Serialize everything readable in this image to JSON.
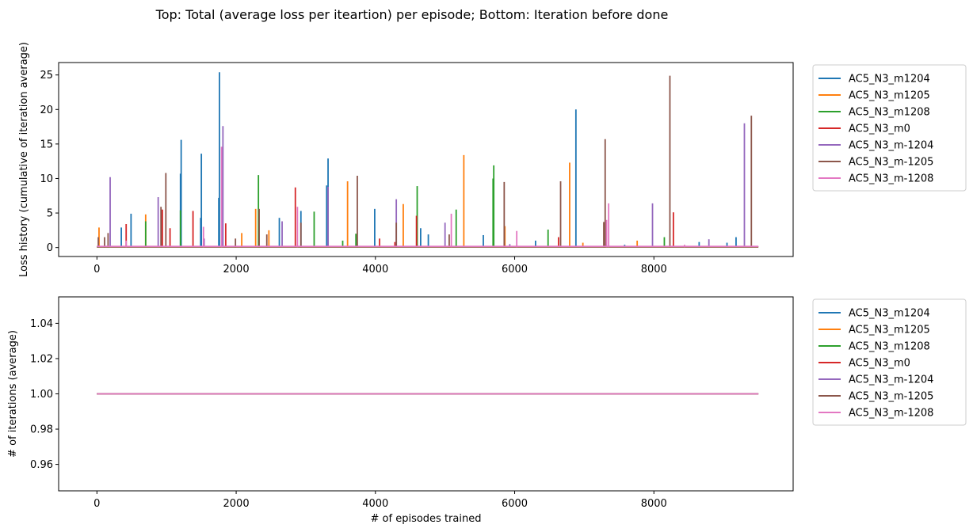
{
  "suptitle": "Top: Total (average loss per iteartion) per episode; Bottom: Iteration before done",
  "colors": {
    "AC5_N3_m1204": "#1f77b4",
    "AC5_N3_m1205": "#ff7f0e",
    "AC5_N3_m1208": "#2ca02c",
    "AC5_N3_m0": "#d62728",
    "AC5_N3_m-1204": "#9467bd",
    "AC5_N3_m-1205": "#8c564b",
    "AC5_N3_m-1208": "#e377c2"
  },
  "chart_data": [
    {
      "type": "line",
      "title": "",
      "xlabel": "",
      "ylabel": "Loss history (cumulative of iteration average)",
      "xlim": [
        -550,
        10000
      ],
      "ylim": [
        -1.3,
        26.8
      ],
      "xticks": [
        0,
        2000,
        4000,
        6000,
        8000
      ],
      "yticks": [
        0,
        5,
        10,
        15,
        20,
        25
      ],
      "baseline": 0.05,
      "x_max": 9500,
      "legend": {
        "placement": "outside-right-top",
        "entries": [
          "AC5_N3_m1204",
          "AC5_N3_m1205",
          "AC5_N3_m1208",
          "AC5_N3_m0",
          "AC5_N3_m-1204",
          "AC5_N3_m-1205",
          "AC5_N3_m-1208"
        ]
      },
      "series": [
        {
          "name": "AC5_N3_m1204",
          "spikes": [
            [
              350,
              2.9
            ],
            [
              490,
              4.9
            ],
            [
              1210,
              15.6
            ],
            [
              1200,
              10.7
            ],
            [
              1500,
              13.6
            ],
            [
              1490,
              4.3
            ],
            [
              1760,
              25.4
            ],
            [
              1750,
              7.2
            ],
            [
              2620,
              4.3
            ],
            [
              2930,
              5.3
            ],
            [
              3320,
              12.9
            ],
            [
              3300,
              9.0
            ],
            [
              3990,
              5.6
            ],
            [
              4650,
              2.8
            ],
            [
              4760,
              1.9
            ],
            [
              5550,
              1.8
            ],
            [
              6300,
              1.0
            ],
            [
              6880,
              20.0
            ],
            [
              8650,
              0.8
            ],
            [
              9180,
              1.5
            ],
            [
              9050,
              0.7
            ],
            [
              7580,
              0.4
            ]
          ]
        },
        {
          "name": "AC5_N3_m1205",
          "spikes": [
            [
              30,
              2.9
            ],
            [
              700,
              4.8
            ],
            [
              2080,
              2.1
            ],
            [
              2280,
              5.6
            ],
            [
              2470,
              2.5
            ],
            [
              3600,
              9.6
            ],
            [
              4400,
              6.3
            ],
            [
              5270,
              13.4
            ],
            [
              5860,
              3.1
            ],
            [
              6790,
              12.3
            ],
            [
              6980,
              0.7
            ],
            [
              7760,
              1.0
            ]
          ]
        },
        {
          "name": "AC5_N3_m1208",
          "spikes": [
            [
              700,
              3.8
            ],
            [
              1200,
              5.4
            ],
            [
              2320,
              10.5
            ],
            [
              3120,
              5.2
            ],
            [
              3720,
              2.0
            ],
            [
              3530,
              1.0
            ],
            [
              4600,
              8.9
            ],
            [
              5160,
              5.5
            ],
            [
              5700,
              11.9
            ],
            [
              5690,
              10.0
            ],
            [
              6480,
              2.6
            ],
            [
              8150,
              1.5
            ]
          ]
        },
        {
          "name": "AC5_N3_m0",
          "spikes": [
            [
              420,
              3.4
            ],
            [
              940,
              5.5
            ],
            [
              1050,
              2.8
            ],
            [
              1380,
              5.3
            ],
            [
              1850,
              3.5
            ],
            [
              2850,
              8.7
            ],
            [
              4060,
              1.3
            ],
            [
              4590,
              4.6
            ],
            [
              6630,
              1.5
            ],
            [
              8280,
              5.1
            ],
            [
              4280,
              0.8
            ]
          ]
        },
        {
          "name": "AC5_N3_m-1204",
          "spikes": [
            [
              190,
              10.2
            ],
            [
              880,
              7.3
            ],
            [
              1810,
              17.6
            ],
            [
              2660,
              3.8
            ],
            [
              3320,
              8.8
            ],
            [
              4300,
              7.0
            ],
            [
              5000,
              3.6
            ],
            [
              5930,
              0.5
            ],
            [
              7980,
              6.4
            ],
            [
              8790,
              1.2
            ],
            [
              9300,
              18.0
            ],
            [
              1540,
              1.3
            ]
          ]
        },
        {
          "name": "AC5_N3_m-1205",
          "spikes": [
            [
              20,
              1.5
            ],
            [
              110,
              1.5
            ],
            [
              160,
              2.1
            ],
            [
              920,
              5.9
            ],
            [
              990,
              10.8
            ],
            [
              2330,
              5.6
            ],
            [
              2440,
              1.9
            ],
            [
              2930,
              3.6
            ],
            [
              3740,
              10.4
            ],
            [
              4300,
              3.6
            ],
            [
              5060,
              1.9
            ],
            [
              5850,
              9.5
            ],
            [
              6660,
              9.6
            ],
            [
              7280,
              3.7
            ],
            [
              7300,
              15.7
            ],
            [
              8230,
              24.9
            ],
            [
              9400,
              19.1
            ],
            [
              1990,
              1.3
            ]
          ]
        },
        {
          "name": "AC5_N3_m-1208",
          "spikes": [
            [
              1530,
              3.0
            ],
            [
              1790,
              14.6
            ],
            [
              2880,
              5.9
            ],
            [
              5090,
              4.9
            ],
            [
              6030,
              2.4
            ],
            [
              7350,
              6.4
            ],
            [
              7320,
              4.0
            ],
            [
              8440,
              0.4
            ],
            [
              420,
              1.0
            ]
          ]
        }
      ]
    },
    {
      "type": "line",
      "title": "",
      "xlabel": "# of episodes trained",
      "ylabel": "# of iterations (average)",
      "xlim": [
        -550,
        10000
      ],
      "ylim": [
        0.945,
        1.055
      ],
      "xticks": [
        0,
        2000,
        4000,
        6000,
        8000
      ],
      "yticks": [
        0.96,
        0.98,
        1.0,
        1.02,
        1.04
      ],
      "ytick_labels": [
        "0.96",
        "0.98",
        "1.00",
        "1.02",
        "1.04"
      ],
      "x_range": [
        0,
        9500
      ],
      "legend": {
        "placement": "outside-right-top",
        "entries": [
          "AC5_N3_m1204",
          "AC5_N3_m1205",
          "AC5_N3_m1208",
          "AC5_N3_m0",
          "AC5_N3_m-1204",
          "AC5_N3_m-1205",
          "AC5_N3_m-1208"
        ]
      },
      "series": [
        {
          "name": "AC5_N3_m1204",
          "value": 1.0
        },
        {
          "name": "AC5_N3_m1205",
          "value": 1.0
        },
        {
          "name": "AC5_N3_m1208",
          "value": 1.0
        },
        {
          "name": "AC5_N3_m0",
          "value": 1.0
        },
        {
          "name": "AC5_N3_m-1204",
          "value": 1.0
        },
        {
          "name": "AC5_N3_m-1205",
          "value": 1.0
        },
        {
          "name": "AC5_N3_m-1208",
          "value": 1.0
        }
      ]
    }
  ]
}
